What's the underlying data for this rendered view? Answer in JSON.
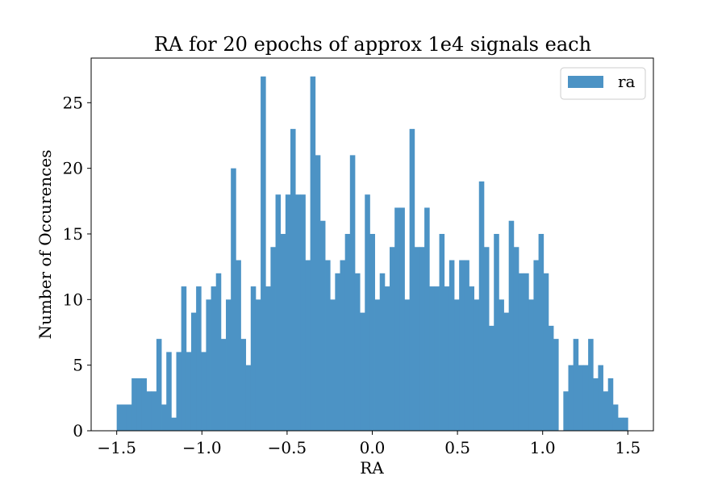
{
  "chart_data": {
    "type": "bar",
    "subtype": "histogram",
    "title": "RA for 20 epochs of approx 1e4 signals each",
    "xlabel": "RA",
    "ylabel": "Number of Occurences",
    "xlim": [
      -1.65,
      1.65
    ],
    "ylim": [
      0,
      28.4
    ],
    "x_ticks": [
      -1.5,
      -1.0,
      -0.5,
      0.0,
      0.5,
      1.0,
      1.5
    ],
    "x_tick_labels": [
      "−1.5",
      "−1.0",
      "−0.5",
      "0.0",
      "0.5",
      "1.0",
      "1.5"
    ],
    "y_ticks": [
      0,
      5,
      10,
      15,
      20,
      25
    ],
    "y_tick_labels": [
      "0",
      "5",
      "10",
      "15",
      "20",
      "25"
    ],
    "grid": false,
    "legend_position": "top-right",
    "bin_range": [
      -1.5,
      1.5
    ],
    "series": [
      {
        "name": "ra",
        "color": "#4c93c5",
        "values": [
          2,
          2,
          2,
          4,
          4,
          4,
          3,
          3,
          7,
          2,
          6,
          1,
          6,
          11,
          6,
          9,
          11,
          6,
          10,
          11,
          12,
          7,
          10,
          20,
          13,
          7,
          5,
          11,
          10,
          27,
          11,
          14,
          18,
          15,
          18,
          23,
          18,
          18,
          13,
          27,
          21,
          16,
          13,
          10,
          12,
          13,
          15,
          21,
          12,
          9,
          18,
          15,
          10,
          12,
          11,
          14,
          17,
          17,
          10,
          23,
          14,
          14,
          17,
          11,
          11,
          15,
          11,
          13,
          10,
          13,
          13,
          11,
          10,
          19,
          14,
          8,
          15,
          10,
          9,
          16,
          14,
          12,
          12,
          10,
          13,
          15,
          12,
          8,
          7,
          0,
          3,
          5,
          7,
          5,
          5,
          7,
          4,
          5,
          3,
          4,
          2,
          1,
          1
        ]
      }
    ]
  }
}
